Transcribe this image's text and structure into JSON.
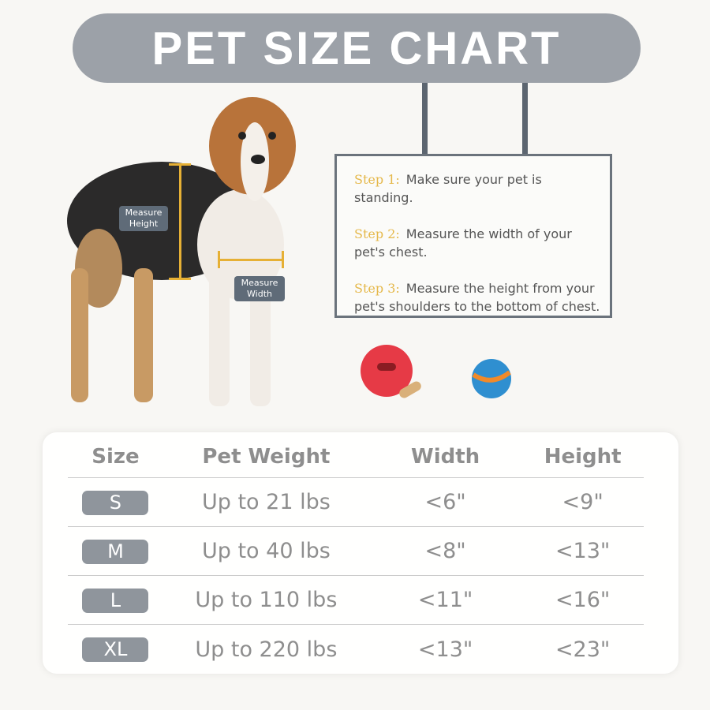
{
  "title": "PET SIZE CHART",
  "labels": {
    "height": "Measure Height",
    "width": "Measure Width"
  },
  "steps": [
    {
      "key": "Step 1:",
      "text": "Make sure your pet is standing."
    },
    {
      "key": "Step 2:",
      "text": "Measure the width of your pet's chest."
    },
    {
      "key": "Step 3:",
      "text": "Measure the height from your pet's shoulders to the bottom of chest."
    }
  ],
  "colors": {
    "banner": "#9ca1a8",
    "accent": "#e6b035",
    "pill": "#8f959c"
  },
  "table": {
    "headers": [
      "Size",
      "Pet Weight",
      "Width",
      "Height"
    ],
    "rows": [
      [
        "S",
        "Up to 21 lbs",
        "<6\"",
        "<9\""
      ],
      [
        "M",
        "Up to 40 lbs",
        "<8\"",
        "<13\""
      ],
      [
        "L",
        "Up to 110 lbs",
        "<11\"",
        "<16\""
      ],
      [
        "XL",
        "Up to 220 lbs",
        "<13\"",
        "<23\""
      ]
    ]
  }
}
